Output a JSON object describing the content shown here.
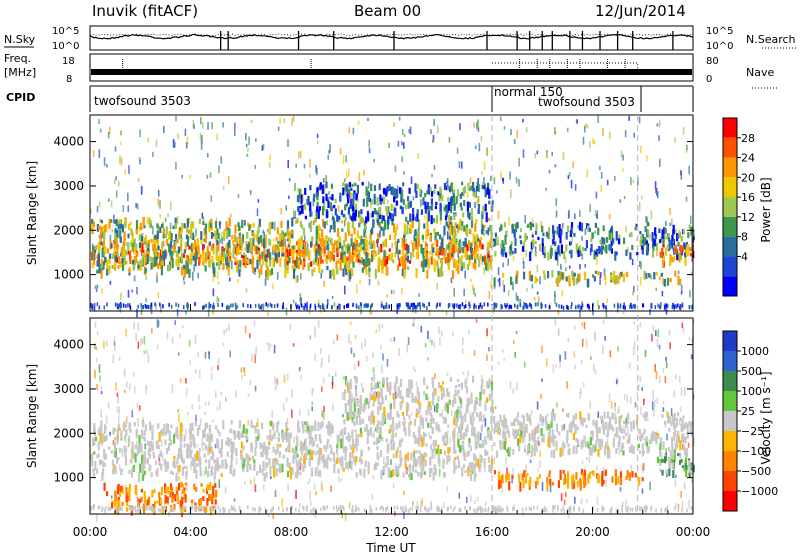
{
  "header": {
    "station": "Inuvik (fitACF)",
    "beam": "Beam 00",
    "date": "12/Jun/2014"
  },
  "top_panels": {
    "nsky_label": "N.Sky",
    "nsky_ticks": [
      "10^5",
      "10^0"
    ],
    "nsearch_label": "N.Search",
    "nsearch_ticks": [
      "10^5",
      "10^0"
    ],
    "freq_label_1": "Freq.",
    "freq_label_2": "[MHz]",
    "freq_ticks": [
      "18",
      "8"
    ],
    "nave_label": "Nave",
    "nave_ticks": [
      "80",
      "0"
    ],
    "cpid_label": "CPID",
    "cpid_segments": [
      {
        "name": "twofsound 3503",
        "start_hour": 0,
        "end_hour": 16
      },
      {
        "name": "normal 150",
        "start_hour": 16,
        "end_hour": 21.8
      },
      {
        "name": "twofsound 3503",
        "start_hour": 21.8,
        "end_hour": 24
      }
    ]
  },
  "chart_data": [
    {
      "type": "heatmap",
      "name": "power",
      "ylabel": "Slant Range [km]",
      "xlabel": "",
      "ylim": [
        180,
        4600
      ],
      "xlim_hours": [
        0,
        24
      ],
      "yticks": [
        "1000",
        "2000",
        "3000",
        "4000"
      ],
      "colorbar_label": "Power [dB]",
      "colorbar_ticks": [
        "28",
        "24",
        "20",
        "16",
        "12",
        "8",
        "4"
      ],
      "colorbar_colors": [
        "#ff0000",
        "#ff5000",
        "#ff9600",
        "#f0c800",
        "#a0c850",
        "#3c9650",
        "#2a6ea0",
        "#1e46d2",
        "#0000ff"
      ],
      "bands": [
        {
          "start_hour": 0.0,
          "end_hour": 16.0,
          "min_km": 1300,
          "max_km": 1800,
          "level": "high"
        },
        {
          "start_hour": 0.0,
          "end_hour": 16.0,
          "min_km": 1100,
          "max_km": 2300,
          "level": "medium"
        },
        {
          "start_hour": 8.0,
          "end_hour": 16.0,
          "min_km": 2300,
          "max_km": 3100,
          "level": "low"
        },
        {
          "start_hour": 16.0,
          "end_hour": 24.0,
          "min_km": 900,
          "max_km": 1100,
          "level": "medium"
        },
        {
          "start_hour": 16.0,
          "end_hour": 24.0,
          "min_km": 1500,
          "max_km": 2200,
          "level": "low"
        },
        {
          "start_hour": 22.5,
          "end_hour": 24.0,
          "min_km": 1300,
          "max_km": 1700,
          "level": "high"
        }
      ]
    },
    {
      "type": "heatmap",
      "name": "velocity",
      "ylabel": "Slant Range [km]",
      "xlabel": "Time UT",
      "ylim": [
        180,
        4600
      ],
      "xlim_hours": [
        0,
        24
      ],
      "xticks": [
        "00:00",
        "04:00",
        "08:00",
        "12:00",
        "16:00",
        "20:00",
        "00:00"
      ],
      "yticks": [
        "1000",
        "2000",
        "3000",
        "4000"
      ],
      "colorbar_label": "Velocity [m s⁻¹]",
      "colorbar_ticks": [
        "1000",
        "500",
        "100",
        "25",
        "−25",
        "−100",
        "−500",
        "−1000"
      ],
      "colorbar_colors": [
        "#1e3cc8",
        "#2d64d2",
        "#3c8c50",
        "#64c83c",
        "#c8c8c8",
        "#ffb400",
        "#ff8200",
        "#ff4600",
        "#ff0000"
      ],
      "bands": [
        {
          "start_hour": 0.0,
          "end_hour": 16.0,
          "min_km": 1100,
          "max_km": 2300,
          "level": "near-zero"
        },
        {
          "start_hour": 10.0,
          "end_hour": 16.0,
          "min_km": 2300,
          "max_km": 3300,
          "level": "near-zero"
        },
        {
          "start_hour": 16.0,
          "end_hour": 22.0,
          "min_km": 900,
          "max_km": 1200,
          "level": "negative"
        },
        {
          "start_hour": 16.0,
          "end_hour": 24.0,
          "min_km": 1600,
          "max_km": 2500,
          "level": "near-zero"
        },
        {
          "start_hour": 0.5,
          "end_hour": 5.0,
          "min_km": 300,
          "max_km": 900,
          "level": "negative"
        },
        {
          "start_hour": 22.5,
          "end_hour": 24.0,
          "min_km": 1100,
          "max_km": 1700,
          "level": "positive"
        }
      ]
    }
  ],
  "colors": {
    "axis": "#000000",
    "guide_dash": "#b4b4b4"
  }
}
